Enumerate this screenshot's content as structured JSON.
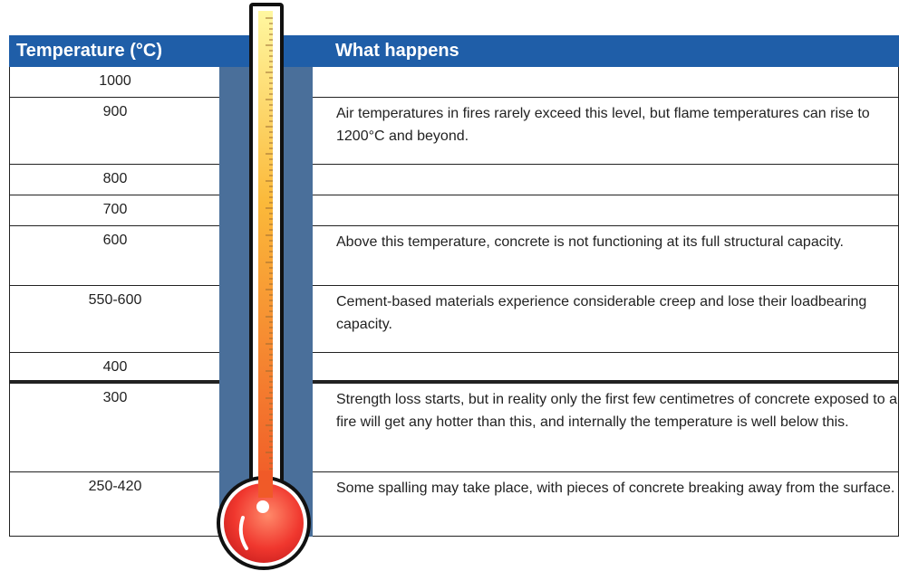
{
  "header": {
    "columns": [
      "Temperature (°C)",
      "What happens"
    ]
  },
  "table": {
    "rows": [
      [
        "1000",
        ""
      ],
      [
        "900",
        "Air temperatures in fires rarely exceed this level, but flame temperatures can rise to 1200°C and beyond."
      ],
      [
        "800",
        ""
      ],
      [
        "700",
        ""
      ],
      [
        "600",
        "Above this temperature, concrete is not functioning at its full structural capacity."
      ],
      [
        "550-600",
        "Cement-based materials experience considerable creep and lose their loadbearing capacity."
      ],
      [
        "400",
        ""
      ],
      [
        "300",
        "Strength loss starts, but in reality only the first few centimetres of concrete exposed to a fire will get any hotter than this, and internally the temperature is well below this."
      ],
      [
        "250-420",
        "Some spalling may take place, with pieces of concrete breaking away from the  surface."
      ]
    ]
  }
}
